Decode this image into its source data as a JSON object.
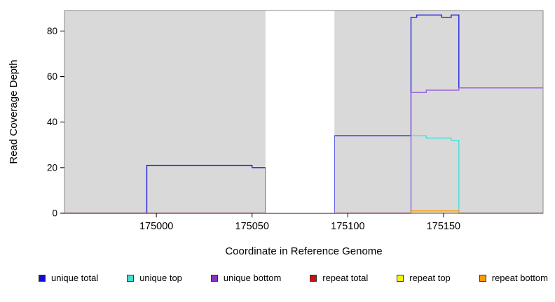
{
  "figure": {
    "xlabel": "Coordinate in Reference Genome",
    "ylabel": "Read Coverage Depth"
  },
  "chart_data": {
    "type": "line",
    "title": "",
    "xlabel": "Coordinate in Reference Genome",
    "ylabel": "Read Coverage Depth",
    "xlim": [
      174952,
      175202
    ],
    "ylim": [
      0,
      89
    ],
    "x_ticks": [
      175000,
      175050,
      175100,
      175150
    ],
    "y_ticks": [
      0,
      20,
      40,
      60,
      80
    ],
    "grid": false,
    "legend_position": "bottom",
    "background": {
      "plot_bg": "#d9d9d9",
      "masked_white_region": [
        175057,
        175093
      ],
      "border_color": "#8a8a8a"
    },
    "series": [
      {
        "name": "unique total",
        "color": "#2222dd",
        "points": [
          [
            174952,
            0
          ],
          [
            174995,
            0
          ],
          [
            174995,
            21
          ],
          [
            175050,
            21
          ],
          [
            175050,
            20
          ],
          [
            175057,
            20
          ],
          [
            175057,
            0
          ],
          [
            175093,
            0
          ],
          [
            175093,
            34
          ],
          [
            175133,
            34
          ],
          [
            175133,
            86
          ],
          [
            175136,
            86
          ],
          [
            175136,
            87
          ],
          [
            175149,
            87
          ],
          [
            175149,
            86
          ],
          [
            175154,
            86
          ],
          [
            175154,
            87
          ],
          [
            175158,
            87
          ],
          [
            175158,
            55
          ],
          [
            175202,
            55
          ]
        ]
      },
      {
        "name": "unique top",
        "color": "#45dede",
        "points": [
          [
            174952,
            0
          ],
          [
            175133,
            0
          ],
          [
            175133,
            34
          ],
          [
            175141,
            34
          ],
          [
            175141,
            33
          ],
          [
            175154,
            33
          ],
          [
            175154,
            32
          ],
          [
            175158,
            32
          ],
          [
            175158,
            0
          ],
          [
            175202,
            0
          ]
        ]
      },
      {
        "name": "unique bottom",
        "color": "#9a66dd",
        "points": [
          [
            174952,
            0
          ],
          [
            175133,
            0
          ],
          [
            175133,
            53
          ],
          [
            175141,
            53
          ],
          [
            175141,
            54
          ],
          [
            175158,
            54
          ],
          [
            175158,
            55
          ],
          [
            175202,
            55
          ]
        ]
      },
      {
        "name": "repeat total",
        "color": "#cc2222",
        "points": [
          [
            174952,
            0
          ],
          [
            175202,
            0
          ]
        ]
      },
      {
        "name": "repeat top",
        "color": "#eded00",
        "points": [
          [
            175133,
            0
          ],
          [
            175158,
            0
          ]
        ]
      },
      {
        "name": "repeat bottom",
        "color": "#ff9900",
        "points": [
          [
            175133,
            0
          ],
          [
            175133,
            1
          ],
          [
            175158,
            1
          ],
          [
            175158,
            0
          ]
        ]
      }
    ]
  },
  "legend": {
    "items": [
      {
        "label": "unique total",
        "color": "#1111cc"
      },
      {
        "label": "unique top",
        "color": "#40e0d0"
      },
      {
        "label": "unique bottom",
        "color": "#8833bb"
      },
      {
        "label": "repeat total",
        "color": "#cc1111"
      },
      {
        "label": "repeat top",
        "color": "#f5f500"
      },
      {
        "label": "repeat bottom",
        "color": "#ff9900"
      }
    ]
  }
}
